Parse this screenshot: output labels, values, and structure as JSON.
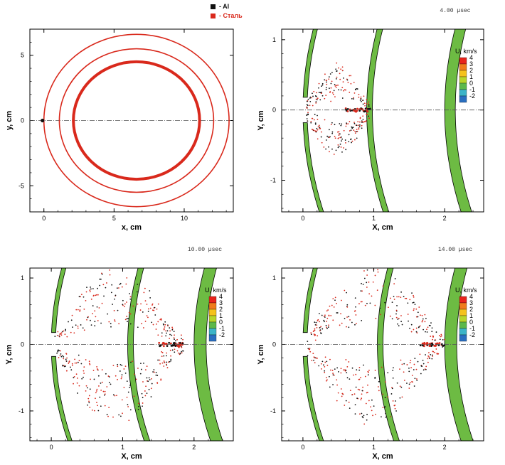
{
  "palette": {
    "steel": "#d9291c",
    "aluminum": "#111111",
    "layer_fill": "#6dbb43",
    "centerline": "#555555"
  },
  "chart_data": [
    {
      "type": "scatter",
      "panel": "top-left",
      "xlabel": "x, cm",
      "ylabel": "y, cm",
      "xlim": [
        -1,
        13.5
      ],
      "ylim": [
        -7,
        7
      ],
      "xticks": [
        0,
        5,
        10
      ],
      "yticks": [
        -5,
        0,
        5
      ],
      "legend": [
        {
          "name": "- Al",
          "color": "#111111"
        },
        {
          "name": "- Сталь",
          "color": "#d9291c"
        }
      ],
      "circles": [
        {
          "cx": 6.6,
          "cy": 0,
          "r": 4.5,
          "material": "- Сталь",
          "thickness": "thick"
        },
        {
          "cx": 6.6,
          "cy": 0,
          "r": 5.5,
          "material": "- Сталь",
          "thickness": "thin"
        },
        {
          "cx": 6.6,
          "cy": 0,
          "r": 6.6,
          "material": "- Сталь",
          "thickness": "thin"
        }
      ],
      "impactor": {
        "x": -0.1,
        "y": 0,
        "material": "- Al"
      }
    },
    {
      "type": "scatter",
      "panel": "top-right",
      "time_label": "4.00 µsec",
      "xlabel": "X, cm",
      "ylabel": "Y, cm",
      "xlim": [
        -0.3,
        2.55
      ],
      "ylim": [
        -1.45,
        1.15
      ],
      "xticks": [
        0,
        1,
        2
      ],
      "yticks": [
        -1,
        0,
        1
      ],
      "colorbar": {
        "title": "U, km/s",
        "levels": [
          4,
          3,
          2,
          1,
          0,
          -1,
          -2
        ]
      },
      "layers": [
        {
          "x0": 0.0,
          "thickness": 0.06
        },
        {
          "x0": 0.9,
          "thickness": 0.08
        },
        {
          "x0": 2.0,
          "thickness": 0.15
        }
      ],
      "debris_front_x": 0.95
    },
    {
      "type": "scatter",
      "panel": "bottom-left",
      "time_label": "10.00 µsec",
      "xlabel": "X, cm",
      "ylabel": "Y, cm",
      "xlim": [
        -0.3,
        2.55
      ],
      "ylim": [
        -1.45,
        1.15
      ],
      "xticks": [
        0,
        1,
        2
      ],
      "yticks": [
        -1,
        0,
        1
      ],
      "colorbar": {
        "title": "U, km/s",
        "levels": [
          4,
          3,
          2,
          1,
          0,
          -1,
          -2
        ]
      },
      "layers": [
        {
          "x0": 0.0,
          "thickness": 0.06
        },
        {
          "x0": 1.07,
          "thickness": 0.08
        },
        {
          "x0": 2.0,
          "thickness": 0.17
        }
      ],
      "debris_front_x": 1.85
    },
    {
      "type": "scatter",
      "panel": "bottom-right",
      "time_label": "14.00 µsec",
      "xlabel": "X, cm",
      "ylabel": "Y, cm",
      "xlim": [
        -0.3,
        2.55
      ],
      "ylim": [
        -1.45,
        1.15
      ],
      "xticks": [
        0,
        1,
        2
      ],
      "yticks": [
        -1,
        0,
        1
      ],
      "colorbar": {
        "title": "U, km/s",
        "levels": [
          4,
          3,
          2,
          1,
          0,
          -1,
          -2
        ]
      },
      "layers": [
        {
          "x0": 0.0,
          "thickness": 0.06
        },
        {
          "x0": 1.05,
          "thickness": 0.08
        },
        {
          "x0": 2.0,
          "thickness": 0.17
        }
      ],
      "debris_front_x": 2.0
    }
  ]
}
